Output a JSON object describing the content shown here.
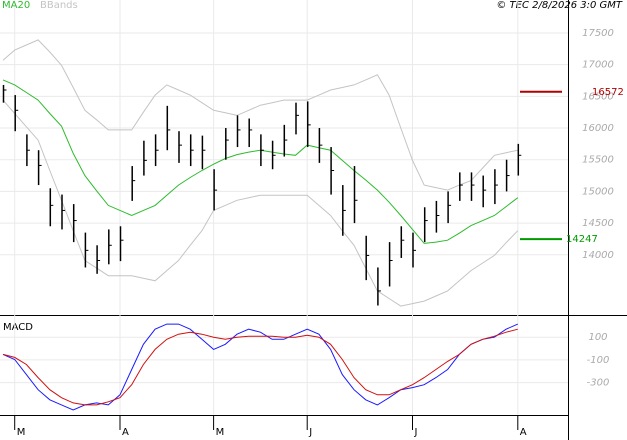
{
  "chart_data": [
    {
      "type": "ohlc",
      "source": "© TEC 2/8/2026 3:0 GMT",
      "ylim": [
        13050,
        18020
      ],
      "yticks": [
        14000,
        14500,
        15000,
        15500,
        16000,
        16500,
        17000,
        17500
      ],
      "grid": true,
      "bar_color": "#000000",
      "close": [
        16600,
        16280,
        15650,
        15410,
        14780,
        14700,
        14540,
        14070,
        13910,
        14150,
        14230,
        15170,
        15490,
        15650,
        15970,
        15730,
        15650,
        15650,
        15020,
        15810,
        15970,
        15970,
        15650,
        15570,
        15810,
        16200,
        16050,
        15730,
        15330,
        14700,
        14860,
        13990,
        13430,
        13910,
        14230,
        14070,
        14540,
        14620,
        14780,
        15100,
        15100,
        15020,
        15100,
        15250,
        15570
      ],
      "high": [
        16680,
        16520,
        15900,
        15650,
        15050,
        14950,
        14800,
        14350,
        14150,
        14400,
        14450,
        15400,
        15800,
        15900,
        16350,
        15950,
        15900,
        15880,
        15350,
        16000,
        16200,
        16150,
        15900,
        15800,
        16050,
        16400,
        16420,
        16000,
        15700,
        15100,
        15400,
        14300,
        13800,
        14200,
        14450,
        14350,
        14750,
        14850,
        15000,
        15300,
        15300,
        15250,
        15350,
        15500,
        15750
      ],
      "low": [
        16400,
        15950,
        15400,
        15100,
        14450,
        14400,
        14200,
        13800,
        13700,
        13850,
        13900,
        14850,
        15250,
        15400,
        15650,
        15450,
        15400,
        15350,
        14700,
        15500,
        15700,
        15700,
        15400,
        15350,
        15550,
        15900,
        15700,
        15450,
        14950,
        14300,
        14500,
        13600,
        13200,
        13500,
        13950,
        13800,
        14200,
        14350,
        14500,
        14850,
        14850,
        14750,
        14800,
        15000,
        15250
      ],
      "series": [
        {
          "name": "MA20",
          "color": "#2dbb2d",
          "values": [
            16760,
            16680,
            16560,
            16440,
            16230,
            16030,
            15600,
            15250,
            15010,
            14780,
            14700,
            14620,
            14700,
            14780,
            14940,
            15100,
            15220,
            15330,
            15430,
            15520,
            15580,
            15620,
            15650,
            15620,
            15590,
            15570,
            15730,
            15690,
            15650,
            15490,
            15330,
            15180,
            15020,
            14830,
            14620,
            14400,
            14180,
            14200,
            14230,
            14340,
            14460,
            14540,
            14620,
            14760,
            14900
          ]
        },
        {
          "name": "BBands",
          "color": "#c4c4c4",
          "upper": [
            17070,
            17230,
            17310,
            17390,
            17200,
            16990,
            16640,
            16280,
            16130,
            15970,
            15970,
            15970,
            16250,
            16520,
            16680,
            16600,
            16520,
            16400,
            16280,
            16240,
            16200,
            16280,
            16360,
            16400,
            16440,
            16440,
            16440,
            16520,
            16600,
            16640,
            16680,
            16760,
            16840,
            16520,
            16000,
            15490,
            15100,
            15060,
            15020,
            15100,
            15170,
            15370,
            15570,
            15610,
            15650
          ],
          "lower": [
            16440,
            16230,
            16020,
            15810,
            15330,
            14860,
            14380,
            13910,
            13790,
            13670,
            13670,
            13670,
            13630,
            13590,
            13750,
            13910,
            14150,
            14380,
            14700,
            14780,
            14860,
            14900,
            14940,
            14940,
            14940,
            14940,
            14940,
            14780,
            14620,
            14380,
            14150,
            13790,
            13430,
            13310,
            13190,
            13230,
            13270,
            13350,
            13430,
            13590,
            13750,
            13870,
            13990,
            14190,
            14380
          ]
        }
      ],
      "annotations": [
        {
          "value": 16572,
          "color": "#b00000"
        },
        {
          "value": 14247,
          "color": "#009a00"
        }
      ]
    },
    {
      "type": "line",
      "title": "MACD",
      "ylim": [
        -585,
        287
      ],
      "yticks": [
        -300,
        -100,
        100
      ],
      "grid": true,
      "categories": [
        null,
        "M",
        null,
        null,
        null,
        null,
        null,
        null,
        null,
        null,
        "A",
        null,
        null,
        null,
        null,
        null,
        null,
        null,
        "M",
        null,
        null,
        null,
        null,
        null,
        null,
        null,
        "J",
        null,
        null,
        null,
        null,
        null,
        null,
        null,
        null,
        "J",
        null,
        null,
        null,
        null,
        null,
        null,
        null,
        null,
        "A"
      ],
      "series": [
        {
          "color": "#1a1aff",
          "values": [
            -51,
            -96,
            -229,
            -362,
            -451,
            -496,
            -540,
            -496,
            -478,
            -496,
            -407,
            -184,
            38,
            171,
            216,
            216,
            171,
            82,
            -7,
            38,
            127,
            171,
            144,
            82,
            82,
            127,
            171,
            127,
            -7,
            -229,
            -362,
            -451,
            -496,
            -433,
            -362,
            -344,
            -318,
            -256,
            -184,
            -51,
            38,
            82,
            100,
            171,
            216
          ]
        },
        {
          "color": "#d01010",
          "values": [
            -51,
            -78,
            -140,
            -256,
            -362,
            -433,
            -478,
            -496,
            -496,
            -469,
            -433,
            -318,
            -140,
            -7,
            82,
            127,
            144,
            127,
            100,
            82,
            100,
            109,
            109,
            109,
            100,
            100,
            118,
            100,
            38,
            -96,
            -256,
            -362,
            -407,
            -407,
            -362,
            -318,
            -256,
            -184,
            -113,
            -51,
            38,
            82,
            109,
            144,
            171
          ]
        }
      ]
    }
  ]
}
